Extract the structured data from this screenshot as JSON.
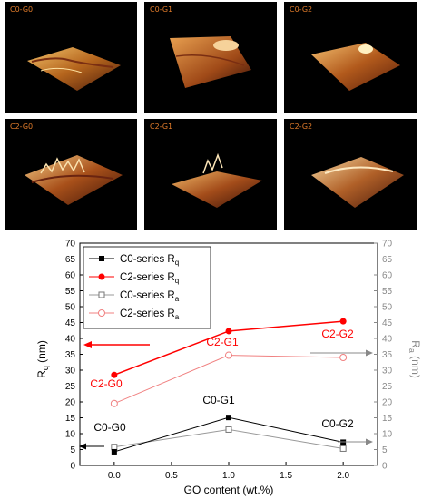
{
  "panels": [
    {
      "label": "C0-G0"
    },
    {
      "label": "C0-G1"
    },
    {
      "label": "C0-G2"
    },
    {
      "label": "C2-G0"
    },
    {
      "label": "C2-G1"
    },
    {
      "label": "C2-G2"
    }
  ],
  "colors": {
    "c0": "#000000",
    "c2": "#ff0000",
    "c0_ra": "#999999",
    "c2_ra": "#f08080",
    "panel_label": "#e07b2a"
  },
  "chart_data": {
    "type": "line",
    "title": "",
    "xlabel": "GO content (wt.%)",
    "ylabel_left_main": "R",
    "ylabel_left_sub": "q",
    "ylabel_left_unit": " (nm)",
    "ylabel_right_main": "R",
    "ylabel_right_sub": "a",
    "ylabel_right_unit": " (nm)",
    "xlim": [
      -0.3,
      2.3
    ],
    "ylim": [
      0,
      70
    ],
    "x_ticks": [
      "0.0",
      "0.5",
      "1.0",
      "1.5",
      "2.0"
    ],
    "y_ticks": [
      "0",
      "5",
      "10",
      "15",
      "20",
      "25",
      "30",
      "35",
      "40",
      "45",
      "50",
      "55",
      "60",
      "65",
      "70"
    ],
    "x": [
      0.0,
      1.0,
      2.0
    ],
    "series": [
      {
        "name_main": "C0-series R",
        "name_sub": "q",
        "values": [
          4.3,
          15.1,
          7.3
        ],
        "color": "#000000",
        "marker": "square-filled"
      },
      {
        "name_main": "C2-series R",
        "name_sub": "q",
        "values": [
          28.5,
          42.3,
          45.4
        ],
        "color": "#ff0000",
        "marker": "circle-filled"
      },
      {
        "name_main": "C0-series R",
        "name_sub": "a",
        "values": [
          5.8,
          11.3,
          5.3
        ],
        "color": "#999999",
        "marker": "square-open"
      },
      {
        "name_main": "C2-series R",
        "name_sub": "a",
        "values": [
          19.5,
          34.7,
          34.0
        ],
        "color": "#f08080",
        "marker": "circle-open"
      }
    ],
    "annotations": [
      {
        "text": "C0-G0",
        "color": "#000000"
      },
      {
        "text": "C0-G1",
        "color": "#000000"
      },
      {
        "text": "C0-G2",
        "color": "#000000"
      },
      {
        "text": "C2-G0",
        "color": "#ff0000"
      },
      {
        "text": "C2-G1",
        "color": "#ff0000"
      },
      {
        "text": "C2-G2",
        "color": "#ff0000"
      }
    ],
    "legend_position": "top-left"
  }
}
